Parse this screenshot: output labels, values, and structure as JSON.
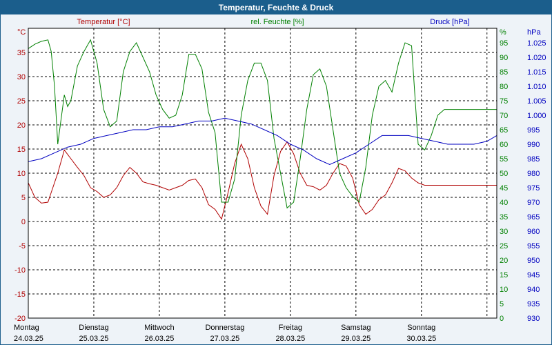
{
  "title": "Temperatur, Feuchte & Druck",
  "colors": {
    "temperature": "#b00000",
    "humidity": "#008000",
    "pressure": "#0000c0",
    "background": "#ffffff",
    "frame": "#1b5e8c"
  },
  "chart_data": {
    "type": "line",
    "grid": true,
    "x_range": [
      0,
      7.15
    ],
    "days": [
      {
        "weekday": "Montag",
        "date": "24.03.25"
      },
      {
        "weekday": "Dienstag",
        "date": "25.03.25"
      },
      {
        "weekday": "Mittwoch",
        "date": "26.03.25"
      },
      {
        "weekday": "Donnerstag",
        "date": "27.03.25"
      },
      {
        "weekday": "Freitag",
        "date": "28.03.25"
      },
      {
        "weekday": "Samstag",
        "date": "29.03.25"
      },
      {
        "weekday": "Sonntag",
        "date": "30.03.25"
      }
    ],
    "axes": {
      "temperature": {
        "label": "Temperatur [°C]",
        "unit": "°C",
        "range": [
          -20,
          40
        ],
        "ticks": [
          "35",
          "30",
          "25",
          "20",
          "15",
          "10",
          "5",
          "0",
          "-5",
          "-10",
          "-15",
          "-20"
        ]
      },
      "humidity": {
        "label": "rel. Feuchte [%]",
        "unit": "%",
        "range": [
          0,
          100
        ],
        "ticks": [
          "95",
          "90",
          "85",
          "80",
          "75",
          "70",
          "65",
          "60",
          "55",
          "50",
          "45",
          "40",
          "35",
          "30",
          "25",
          "20",
          "15",
          "10",
          "5",
          "0"
        ]
      },
      "pressure": {
        "label": "Druck [hPa]",
        "unit": "hPa",
        "range": [
          930,
          1030
        ],
        "ticks": [
          "1.025",
          "1.020",
          "1.015",
          "1.010",
          "1.005",
          "1.000",
          "995",
          "990",
          "985",
          "980",
          "975",
          "970",
          "965",
          "960",
          "955",
          "950",
          "945",
          "940",
          "935",
          "930"
        ]
      }
    },
    "series": [
      {
        "name": "Temperatur [°C]",
        "key": "temperature",
        "x": [
          0,
          0.1,
          0.2,
          0.3,
          0.35,
          0.45,
          0.55,
          0.65,
          0.75,
          0.85,
          0.95,
          1.05,
          1.15,
          1.25,
          1.35,
          1.45,
          1.55,
          1.65,
          1.75,
          1.85,
          1.95,
          2.05,
          2.15,
          2.25,
          2.35,
          2.45,
          2.55,
          2.65,
          2.75,
          2.85,
          2.95,
          3.05,
          3.15,
          3.25,
          3.35,
          3.45,
          3.55,
          3.65,
          3.75,
          3.85,
          3.95,
          4.05,
          4.15,
          4.25,
          4.35,
          4.45,
          4.55,
          4.65,
          4.75,
          4.85,
          4.95,
          5.05,
          5.15,
          5.25,
          5.35,
          5.45,
          5.55,
          5.65,
          5.75,
          5.85,
          5.95,
          6.05,
          6.15,
          6.25,
          6.35,
          6.45,
          6.55,
          6.65,
          6.75,
          6.85,
          6.95,
          7.05,
          7.15
        ],
        "values": [
          8,
          5,
          3.8,
          4,
          6,
          10,
          14.8,
          13,
          11.2,
          9.5,
          7,
          6.2,
          5,
          5.5,
          7,
          9.5,
          11.2,
          10,
          8.2,
          7.8,
          7.5,
          7,
          6.5,
          7,
          7.5,
          8.5,
          8.8,
          7,
          3.5,
          2.5,
          0.5,
          6,
          12,
          16,
          13,
          7,
          3.2,
          1.5,
          9.5,
          14.5,
          16.5,
          14,
          10,
          7.5,
          7.2,
          6.5,
          7.5,
          10,
          12,
          11.5,
          9,
          3.5,
          1.5,
          2.5,
          4.5,
          5.5,
          8,
          11,
          10.5,
          9,
          8,
          7.5,
          7.5,
          7.5,
          7.5,
          7.5,
          7.5,
          7.5,
          7.5,
          7.5,
          7.5,
          7.5,
          7.5
        ]
      },
      {
        "name": "rel. Feuchte [%]",
        "key": "humidity",
        "x": [
          0,
          0.1,
          0.2,
          0.3,
          0.35,
          0.4,
          0.45,
          0.55,
          0.6,
          0.65,
          0.75,
          0.85,
          0.95,
          1.05,
          1.15,
          1.25,
          1.35,
          1.45,
          1.55,
          1.65,
          1.75,
          1.85,
          1.95,
          2.05,
          2.15,
          2.25,
          2.35,
          2.45,
          2.55,
          2.65,
          2.75,
          2.85,
          2.95,
          3.05,
          3.15,
          3.25,
          3.35,
          3.45,
          3.55,
          3.65,
          3.75,
          3.85,
          3.95,
          4.05,
          4.15,
          4.25,
          4.35,
          4.45,
          4.55,
          4.65,
          4.75,
          4.85,
          4.95,
          5.05,
          5.15,
          5.25,
          5.35,
          5.45,
          5.55,
          5.65,
          5.75,
          5.85,
          5.95,
          6.05,
          6.15,
          6.25,
          6.35,
          6.45,
          6.55,
          6.65,
          6.75,
          6.85,
          6.95,
          7.05,
          7.15
        ],
        "values": [
          93,
          94.5,
          95.5,
          96,
          92,
          80,
          60,
          77,
          73,
          75,
          87,
          92,
          96,
          88,
          72,
          66,
          68,
          85,
          92,
          95,
          90,
          85,
          77,
          72,
          69,
          70,
          77,
          91,
          91,
          86,
          71,
          64,
          40,
          40,
          48,
          70,
          82,
          88,
          88,
          82,
          62,
          50,
          38,
          40,
          55,
          72,
          84,
          86,
          80,
          65,
          50,
          45,
          42,
          40,
          52,
          70,
          80,
          82,
          78,
          88,
          95,
          94,
          60,
          58,
          63,
          70,
          72,
          72,
          72,
          72,
          72,
          72,
          72,
          72,
          72
        ]
      },
      {
        "name": "Druck [hPa]",
        "key": "pressure",
        "x": [
          0,
          0.2,
          0.4,
          0.6,
          0.8,
          1.0,
          1.2,
          1.4,
          1.6,
          1.8,
          2.0,
          2.2,
          2.4,
          2.6,
          2.8,
          3.0,
          3.2,
          3.4,
          3.6,
          3.8,
          4.0,
          4.2,
          4.4,
          4.6,
          4.8,
          5.0,
          5.2,
          5.4,
          5.6,
          5.8,
          6.0,
          6.2,
          6.4,
          6.6,
          6.8,
          7.0,
          7.15
        ],
        "values": [
          984,
          985,
          987,
          989,
          990,
          992,
          993,
          994,
          995,
          995,
          996,
          996,
          997,
          998,
          998,
          999,
          998,
          997,
          995,
          993,
          990,
          988,
          985,
          983,
          985,
          987,
          990,
          993,
          993,
          993,
          992,
          991,
          990,
          990,
          990,
          991,
          993
        ]
      }
    ]
  }
}
